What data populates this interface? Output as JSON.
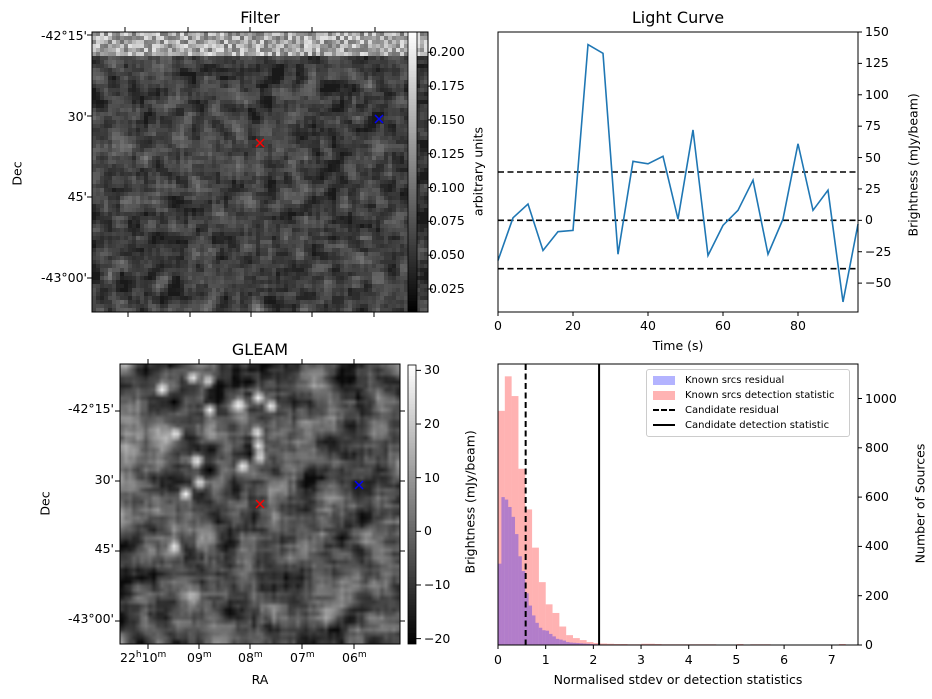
{
  "panels": {
    "filter": {
      "title": "Filter",
      "ylabel": "Dec",
      "yticks": [
        "-42°15'",
        "30'",
        "45'",
        "-43°00'"
      ],
      "colorbar": {
        "label": "arbitrary units",
        "ticks": [
          "0.025",
          "0.050",
          "0.075",
          "0.100",
          "0.125",
          "0.150",
          "0.175",
          "0.200"
        ],
        "range": [
          0.008,
          0.215
        ]
      },
      "markers": [
        {
          "name": "candidate",
          "color": "#ff0000",
          "symbol": "x"
        },
        {
          "name": "reference",
          "color": "#0000ff",
          "symbol": "x"
        }
      ]
    },
    "gleam": {
      "title": "GLEAM",
      "xlabel": "RA",
      "ylabel": "Dec",
      "xticks": [
        {
          "main": "22",
          "sup1": "h",
          "main2": "10",
          "sup2": "m"
        },
        {
          "main": "09",
          "sup1": "m"
        },
        {
          "main": "08",
          "sup1": "m"
        },
        {
          "main": "07",
          "sup1": "m"
        },
        {
          "main": "06",
          "sup1": "m"
        }
      ],
      "yticks": [
        "-42°15'",
        "30'",
        "45'",
        "-43°00'"
      ],
      "colorbar": {
        "label": "Brightness (mJy/beam)",
        "ticks": [
          "−20",
          "−10",
          "0",
          "10",
          "20",
          "30"
        ],
        "range": [
          -21,
          31
        ]
      },
      "markers": [
        {
          "name": "candidate",
          "color": "#ff0000",
          "symbol": "x"
        },
        {
          "name": "reference",
          "color": "#0000ff",
          "symbol": "x"
        }
      ]
    }
  },
  "chart_data": [
    {
      "type": "line",
      "title": "Light Curve",
      "xlabel": "Time (s)",
      "ylabel": "Brightness (mJy/beam)",
      "xlim": [
        0,
        96
      ],
      "ylim": [
        -73,
        150
      ],
      "xticks": [
        0,
        20,
        40,
        60,
        80
      ],
      "yticks": [
        -50,
        -25,
        0,
        25,
        50,
        75,
        100,
        125,
        150
      ],
      "ytick_labels": [
        "−50",
        "−25",
        "0",
        "25",
        "50",
        "75",
        "100",
        "125",
        "150"
      ],
      "series": [
        {
          "name": "light curve",
          "color": "#1f77b4",
          "x": [
            0,
            4,
            8,
            12,
            16,
            20,
            24,
            28,
            32,
            36,
            40,
            44,
            48,
            52,
            56,
            60,
            64,
            68,
            72,
            76,
            80,
            84,
            88,
            92,
            96
          ],
          "y": [
            -32,
            2,
            13,
            -24,
            -9,
            -8,
            140,
            133,
            -27,
            47,
            45,
            51,
            1,
            72,
            -28,
            -4,
            8,
            32,
            -27,
            1,
            61,
            8,
            24,
            -65,
            -3
          ]
        }
      ],
      "hlines": [
        {
          "y": 38.5,
          "style": "dashed",
          "color": "#000000"
        },
        {
          "y": 0,
          "style": "dashed",
          "color": "#000000"
        },
        {
          "y": -38.5,
          "style": "dashed",
          "color": "#000000"
        }
      ]
    },
    {
      "type": "bar",
      "subtype": "histogram",
      "title": "",
      "xlabel": "Normalised stdev or detection statistics",
      "ylabel": "Number of Sources",
      "xlim": [
        0,
        7.55
      ],
      "ylim": [
        0,
        1140
      ],
      "xticks": [
        0,
        1,
        2,
        3,
        4,
        5,
        6,
        7
      ],
      "yticks": [
        0,
        200,
        400,
        600,
        800,
        1000
      ],
      "legend_position": "top-right",
      "bin_width": 0.143,
      "series": [
        {
          "name": "Known srcs residual",
          "color": "#0000ff",
          "alpha": 0.3,
          "bin_width": 0.0714,
          "values": [
            330,
            600,
            590,
            560,
            520,
            450,
            360,
            300,
            210,
            160,
            120,
            90,
            70,
            60,
            58,
            45,
            35,
            25,
            22,
            18,
            12,
            10,
            9,
            8,
            7,
            6,
            5,
            4,
            3,
            3,
            2,
            2,
            2,
            1,
            1,
            1,
            1,
            1,
            1,
            1,
            1
          ]
        },
        {
          "name": "Known srcs detection statistic",
          "color": "#ff0000",
          "alpha": 0.3,
          "bin_width": 0.143,
          "values": [
            950,
            1090,
            1010,
            715,
            550,
            395,
            255,
            165,
            130,
            75,
            40,
            28,
            20,
            12,
            8,
            6,
            5,
            4,
            4,
            3,
            3,
            5,
            5,
            4,
            3,
            3,
            3,
            3,
            3,
            3,
            3,
            3,
            2,
            1,
            1,
            4,
            1,
            3,
            3,
            3,
            0,
            0,
            0,
            0,
            0,
            0,
            0,
            0,
            0,
            0,
            4
          ]
        }
      ],
      "vlines": [
        {
          "name": "Candidate residual",
          "x": 0.58,
          "style": "dashed",
          "color": "#000000"
        },
        {
          "name": "Candidate detection statistic",
          "x": 2.12,
          "style": "solid",
          "color": "#000000"
        }
      ],
      "legend": [
        {
          "label": "Known srcs residual",
          "kind": "patch",
          "color": "#b3b3ff"
        },
        {
          "label": "Known srcs detection statistic",
          "kind": "patch",
          "color": "#ffb3b3"
        },
        {
          "label": "Candidate residual",
          "kind": "dashed"
        },
        {
          "label": "Candidate detection statistic",
          "kind": "solid"
        }
      ],
      "left_ylabel": "Brightness (mJy/beam)"
    }
  ]
}
